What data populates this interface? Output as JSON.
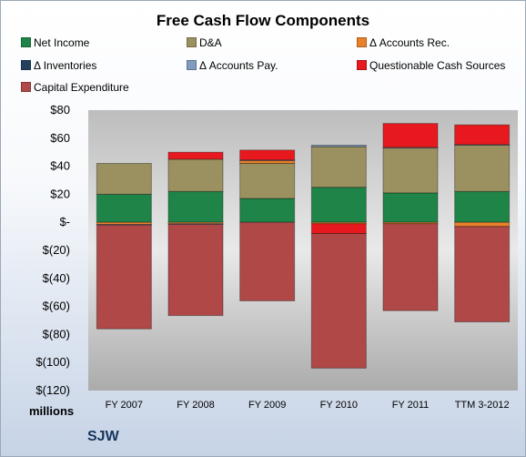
{
  "chart_data": {
    "type": "bar",
    "stacked": true,
    "title": "Free Cash Flow Components",
    "units": "millions",
    "ylim": [
      -120,
      80
    ],
    "y_ticks": [
      "$80",
      "$60",
      "$40",
      "$20",
      "$-",
      "$(20)",
      "$(40)",
      "$(60)",
      "$(80)",
      "$(100)",
      "$(120)"
    ],
    "categories": [
      "FY 2007",
      "FY 2008",
      "FY 2009",
      "FY 2010",
      "FY 2011",
      "TTM 3-2012"
    ],
    "series": [
      {
        "name": "Net Income",
        "color": "#1e8447",
        "values": [
          20,
          22,
          17,
          25,
          21,
          22
        ]
      },
      {
        "name": "D&A",
        "color": "#9b9060",
        "values": [
          22,
          23,
          25,
          29,
          32,
          33
        ]
      },
      {
        "name": "Δ Accounts Rec.",
        "color": "#e9802a",
        "values": [
          -1.5,
          -1,
          2,
          -1,
          -1,
          -3
        ]
      },
      {
        "name": "Δ Inventories",
        "color": "#24405f",
        "values": [
          0,
          0,
          0,
          0,
          0,
          0
        ]
      },
      {
        "name": "Δ Accounts Pay.",
        "color": "#7f9bc0",
        "values": [
          -0.5,
          -0.5,
          0.5,
          1,
          0.5,
          0.5
        ]
      },
      {
        "name": "Questionable Cash Sources",
        "color": "#e8191e",
        "values": [
          0,
          5,
          7,
          -7,
          17,
          14
        ]
      },
      {
        "name": "Capital Expenditure",
        "color": "#b04848",
        "values": [
          -74,
          -65,
          -56,
          -96,
          -62,
          -68
        ]
      }
    ],
    "grid": false,
    "legend_position": "top"
  },
  "units_label": "millions",
  "ticker": "SJW"
}
